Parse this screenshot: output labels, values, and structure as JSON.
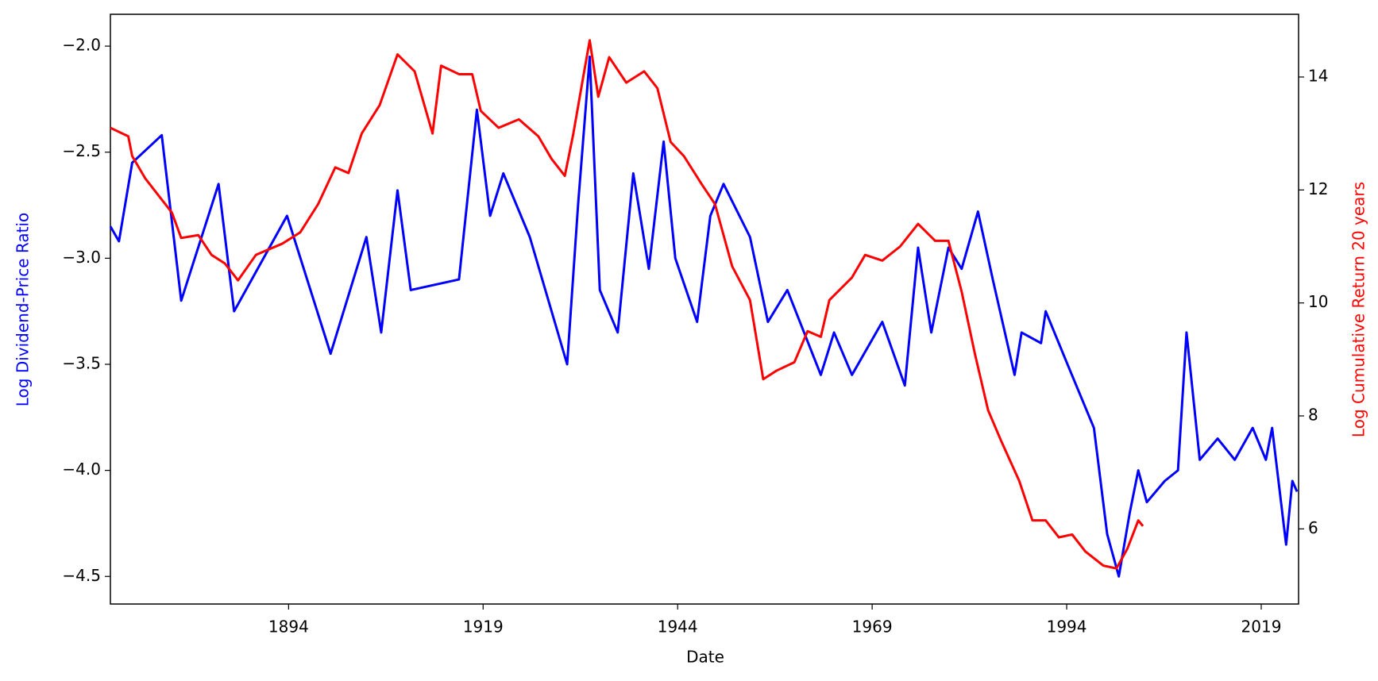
{
  "chart_data": {
    "type": "line",
    "xlabel": "Date",
    "ylabel": "Log Dividend-Price Ratio",
    "y2label": "Log Cumulative Return 20 years",
    "xlim": [
      1871.1,
      2023.8
    ],
    "xticks": [
      1894,
      1919,
      1944,
      1969,
      1994,
      2019
    ],
    "ylim": [
      -4.63,
      -1.85
    ],
    "yticks": [
      {
        "value": -4.5,
        "label": "−4.5"
      },
      {
        "value": -4.0,
        "label": "−4.0"
      },
      {
        "value": -3.5,
        "label": "−3.5"
      },
      {
        "value": -3.0,
        "label": "−3.0"
      },
      {
        "value": -2.5,
        "label": "−2.5"
      },
      {
        "value": -2.0,
        "label": "−2.0"
      }
    ],
    "y2lim": [
      4.67,
      15.11
    ],
    "y2ticks": [
      6,
      8,
      10,
      12,
      14
    ],
    "series": [
      {
        "color": "#0000ff",
        "axis": "y",
        "x": [
          1871.1,
          1872.2,
          1873.9,
          1877.7,
          1880.2,
          1885.0,
          1887.0,
          1893.8,
          1899.4,
          1904.0,
          1905.9,
          1908.0,
          1909.7,
          1915.9,
          1918.2,
          1919.9,
          1921.6,
          1925.0,
          1929.8,
          1931.2,
          1932.7,
          1934.0,
          1936.3,
          1938.3,
          1940.3,
          1942.2,
          1943.7,
          1946.5,
          1948.2,
          1949.9,
          1953.3,
          1955.6,
          1958.1,
          1962.4,
          1964.1,
          1966.4,
          1970.3,
          1973.2,
          1974.9,
          1976.6,
          1978.8,
          1980.5,
          1982.6,
          1984.5,
          1987.3,
          1988.2,
          1990.7,
          1991.3,
          1994.1,
          1997.5,
          1999.2,
          2000.7,
          2002.1,
          2003.2,
          2004.3,
          2006.6,
          2008.3,
          2009.4,
          2011.1,
          2013.4,
          2015.6,
          2017.9,
          2019.6,
          2020.4,
          2022.2,
          2023.0,
          2023.6
        ],
        "values": [
          -2.85,
          -2.92,
          -2.55,
          -2.42,
          -3.2,
          -2.65,
          -3.25,
          -2.8,
          -3.45,
          -2.9,
          -3.35,
          -2.68,
          -3.15,
          -3.1,
          -2.3,
          -2.8,
          -2.6,
          -2.9,
          -3.5,
          -2.75,
          -2.05,
          -3.15,
          -3.35,
          -2.6,
          -3.05,
          -2.45,
          -3.0,
          -3.3,
          -2.8,
          -2.65,
          -2.9,
          -3.3,
          -3.15,
          -3.55,
          -3.35,
          -3.55,
          -3.3,
          -3.6,
          -2.95,
          -3.35,
          -2.95,
          -3.05,
          -2.78,
          -3.1,
          -3.55,
          -3.35,
          -3.4,
          -3.25,
          -3.5,
          -3.8,
          -4.3,
          -4.5,
          -4.2,
          -4.0,
          -4.15,
          -4.05,
          -4.0,
          -3.35,
          -3.95,
          -3.85,
          -3.95,
          -3.8,
          -3.95,
          -3.8,
          -4.35,
          -4.05,
          -4.1
        ]
      },
      {
        "color": "#ff0000",
        "axis": "y2",
        "x": [
          1871.1,
          1873.4,
          1873.9,
          1875.6,
          1877.3,
          1879.0,
          1880.2,
          1882.4,
          1884.1,
          1885.8,
          1887.5,
          1889.8,
          1893.2,
          1895.5,
          1897.8,
          1900.0,
          1901.7,
          1903.4,
          1905.7,
          1908.0,
          1910.2,
          1912.5,
          1913.6,
          1915.9,
          1917.6,
          1918.7,
          1921.0,
          1923.6,
          1926.1,
          1927.8,
          1929.5,
          1930.6,
          1931.8,
          1932.7,
          1933.8,
          1935.2,
          1937.4,
          1939.7,
          1941.4,
          1943.1,
          1944.8,
          1947.1,
          1948.8,
          1951.0,
          1953.3,
          1955.0,
          1956.7,
          1959.0,
          1960.7,
          1962.4,
          1963.5,
          1966.4,
          1968.1,
          1970.3,
          1972.6,
          1974.9,
          1977.1,
          1978.8,
          1980.5,
          1982.2,
          1983.9,
          1985.6,
          1987.9,
          1989.6,
          1991.3,
          1993.0,
          1994.7,
          1996.4,
          1998.7,
          2000.4,
          2001.8,
          2003.2,
          2003.8
        ],
        "values": [
          13.1,
          12.95,
          12.6,
          12.2,
          11.9,
          11.6,
          11.15,
          11.2,
          10.85,
          10.7,
          10.4,
          10.85,
          11.05,
          11.25,
          11.75,
          12.4,
          12.3,
          13.0,
          13.5,
          14.4,
          14.1,
          13.0,
          14.2,
          14.05,
          14.05,
          13.4,
          13.1,
          13.25,
          12.95,
          12.55,
          12.25,
          13.0,
          13.95,
          14.65,
          13.65,
          14.35,
          13.9,
          14.1,
          13.8,
          12.85,
          12.6,
          12.1,
          11.75,
          10.65,
          10.05,
          8.65,
          8.8,
          8.95,
          9.5,
          9.4,
          10.05,
          10.45,
          10.85,
          10.75,
          11.0,
          11.4,
          11.1,
          11.1,
          10.2,
          9.1,
          8.1,
          7.55,
          6.85,
          6.15,
          6.15,
          5.85,
          5.9,
          5.6,
          5.35,
          5.3,
          5.65,
          6.15,
          6.05
        ]
      }
    ]
  }
}
